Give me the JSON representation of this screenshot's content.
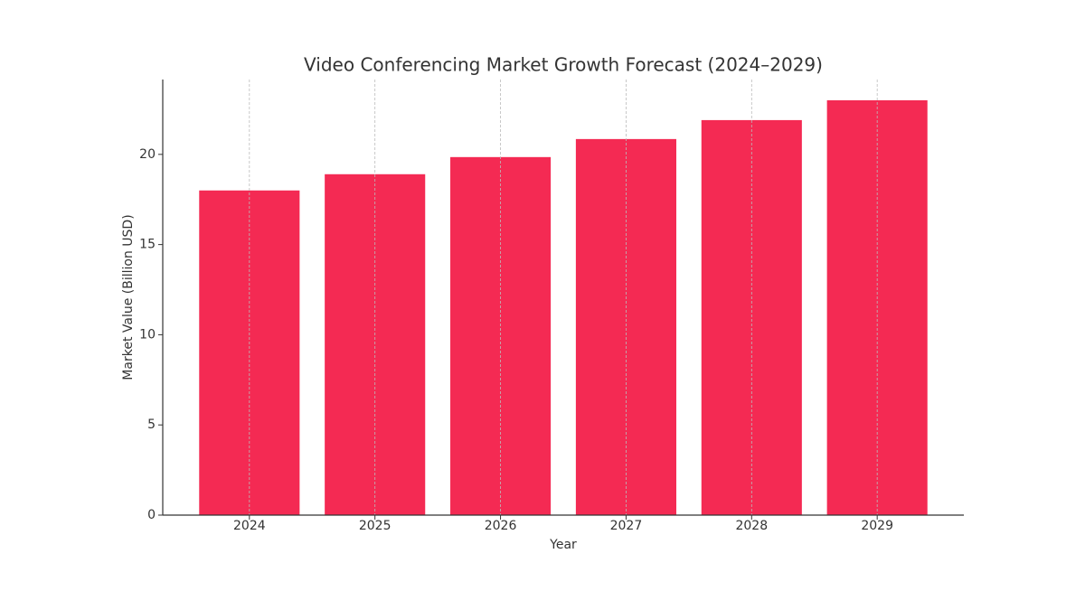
{
  "chart_data": {
    "type": "bar",
    "title": "Video Conferencing Market Growth Forecast (2024–2029)",
    "x_label": "Year",
    "y_label": "Market Value (Billion USD)",
    "categories": [
      "2024",
      "2025",
      "2026",
      "2027",
      "2028",
      "2029"
    ],
    "values": [
      18.0,
      18.9,
      19.85,
      20.85,
      21.9,
      23.0
    ],
    "color": "#f42a53",
    "ylim": [
      0,
      24.15
    ],
    "yticks": [
      0,
      5,
      10,
      15,
      20
    ],
    "grid": "x"
  }
}
